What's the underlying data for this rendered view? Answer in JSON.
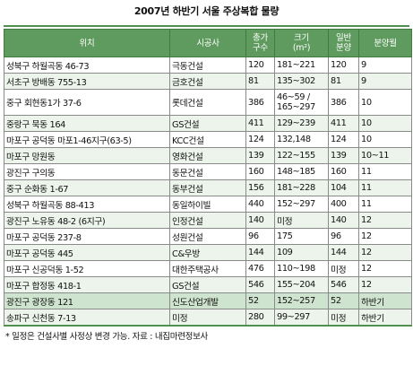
{
  "title": "2007년 하반기 서울 주상복합 물량",
  "headers": {
    "location": "위치",
    "builder": "시공사",
    "total_l1": "총가",
    "total_l2": "구수",
    "size_l1": "크기",
    "size_l2": "(m²)",
    "general_l1": "일반",
    "general_l2": "분양",
    "month": "분양월"
  },
  "rows": [
    {
      "location": "성북구 하월곡동 46-73",
      "builder": "극동건설",
      "total": "120",
      "size": "181~221",
      "general": "120",
      "month": "9"
    },
    {
      "location": "서초구 방배동 755-13",
      "builder": "금호건설",
      "total": "81",
      "size": "135~302",
      "general": "81",
      "month": "9"
    },
    {
      "location": "중구 회현동1가 37-6",
      "builder": "롯데건설",
      "total": "386",
      "size_l1": "46~59 /",
      "size_l2": "165~297",
      "general": "386",
      "month": "10"
    },
    {
      "location": "중랑구 묵동 164",
      "builder": "GS건설",
      "total": "411",
      "size": "129~239",
      "general": "411",
      "month": "10"
    },
    {
      "location": "마포구 공덕동 마포1-46지구(63-5)",
      "builder": "KCC건설",
      "total": "124",
      "size": "132,148",
      "general": "124",
      "month": "10"
    },
    {
      "location": "마포구 망원동",
      "builder": "영화건설",
      "total": "139",
      "size": "122~155",
      "general": "139",
      "month": "10~11"
    },
    {
      "location": "광진구 구의동",
      "builder": "동문건설",
      "total": "160",
      "size": "148~185",
      "general": "160",
      "month": "11"
    },
    {
      "location": "중구 순화동 1-67",
      "builder": "동부건설",
      "total": "156",
      "size": "181~228",
      "general": "104",
      "month": "11"
    },
    {
      "location": "성북구 하월곡동 88-413",
      "builder": "동일하이빌",
      "total": "440",
      "size": "152~297",
      "general": "400",
      "month": "11"
    },
    {
      "location": "광진구 노유동 48-2 (6지구)",
      "builder": "인정건설",
      "total": "140",
      "size": "미정",
      "general": "140",
      "month": "12"
    },
    {
      "location": "마포구 공덕동 237-8",
      "builder": "성원건설",
      "total": "96",
      "size": "175",
      "general": "96",
      "month": "12"
    },
    {
      "location": "마포구 공덕동 445",
      "builder": "C&우방",
      "total": "144",
      "size": "109",
      "general": "144",
      "month": "12"
    },
    {
      "location": "마포구 신공덕동 1-52",
      "builder": "대한주택공사",
      "total": "476",
      "size": "110~198",
      "general": "미정",
      "month": "12"
    },
    {
      "location": "마포구 합정동 418-1",
      "builder": "GS건설",
      "total": "546",
      "size": "155~204",
      "general": "546",
      "month": "12"
    },
    {
      "location": "광진구 광장동 121",
      "builder": "신도산업개발",
      "total": "52",
      "size": "152~257",
      "general": "52",
      "month": "하반기"
    },
    {
      "location": "송파구 신천동 7-13",
      "builder": "미정",
      "total": "280",
      "size": "99~297",
      "general": "미정",
      "month": "하반기"
    }
  ],
  "footer": "* 일정은 건설사별 사정상 변경 가능.   자료 : 내집마련정보사"
}
